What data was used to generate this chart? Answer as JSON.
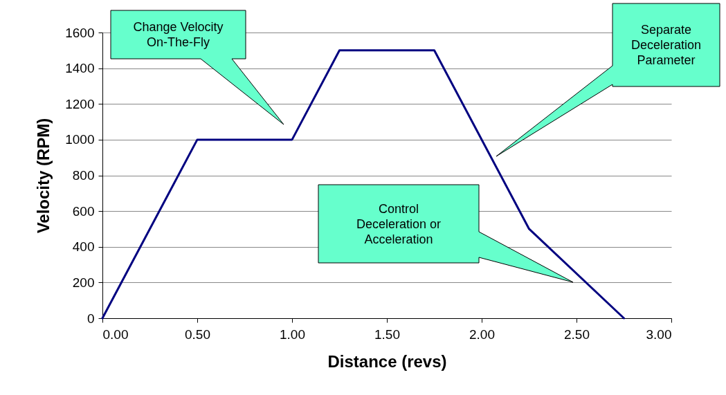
{
  "chart_data": {
    "type": "line",
    "xlabel": "Distance (revs)",
    "ylabel": "Velocity (RPM)",
    "x": [
      0,
      0.5,
      1,
      1.25,
      1.75,
      2.25,
      2.75
    ],
    "series": [
      {
        "color": "#000080",
        "values": [
          0,
          1000,
          1000,
          1500,
          1500,
          500,
          0
        ]
      }
    ],
    "xlim": [
      0,
      3
    ],
    "xticks": [
      {
        "value": 0,
        "label": "0.00"
      },
      {
        "value": 0.5,
        "label": "0.50"
      },
      {
        "value": 1,
        "label": "1.00"
      },
      {
        "value": 1.5,
        "label": "1.50"
      },
      {
        "value": 2,
        "label": "2.00"
      },
      {
        "value": 2.5,
        "label": "2.50"
      },
      {
        "value": 3,
        "label": "3.00"
      }
    ],
    "ylim": [
      0,
      1600
    ],
    "yticks": [
      0,
      200,
      400,
      600,
      800,
      1000,
      1200,
      1400,
      1600
    ],
    "grid": "y",
    "marker": "none",
    "line_style": "solid",
    "annotations": [
      "Change Velocity On-The-Fly",
      "Separate Deceleration Parameter",
      "Control Deceleration or Acceleration"
    ]
  }
}
